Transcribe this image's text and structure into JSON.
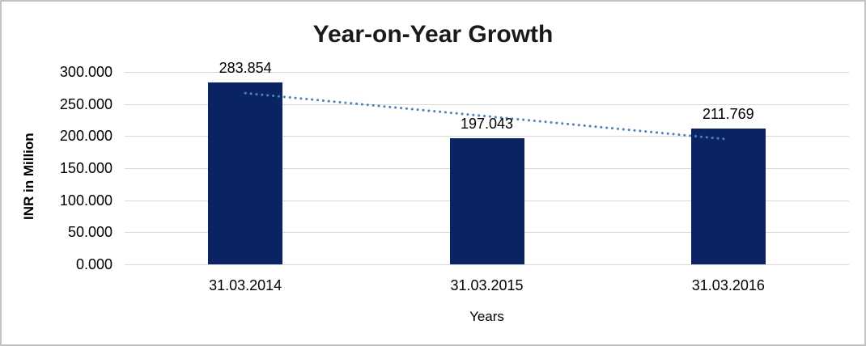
{
  "chart_data": {
    "type": "bar",
    "title": "Year-on-Year Growth",
    "xlabel": "Years",
    "ylabel": "INR in Million",
    "categories": [
      "31.03.2014",
      "31.03.2015",
      "31.03.2016"
    ],
    "values": [
      283.854,
      197.043,
      211.769
    ],
    "data_labels": [
      "283.854",
      "197.043",
      "211.769"
    ],
    "ylim": [
      0,
      300
    ],
    "ytick_step": 50,
    "ytick_labels": [
      "0.000",
      "50.000",
      "100.000",
      "150.000",
      "200.000",
      "250.000",
      "300.000"
    ],
    "grid": true,
    "legend": "none",
    "bar_color": "#0a2463",
    "gridline_color": "#d9d9d9",
    "text_color": "#000000",
    "title_color": "#1a1a1a",
    "frame_border_color": "#c3c3c3",
    "trendline": {
      "style": "dotted",
      "shape": "linear",
      "color": "#4f81bd",
      "endpoint_values": [
        266.9,
        194.9
      ]
    }
  }
}
